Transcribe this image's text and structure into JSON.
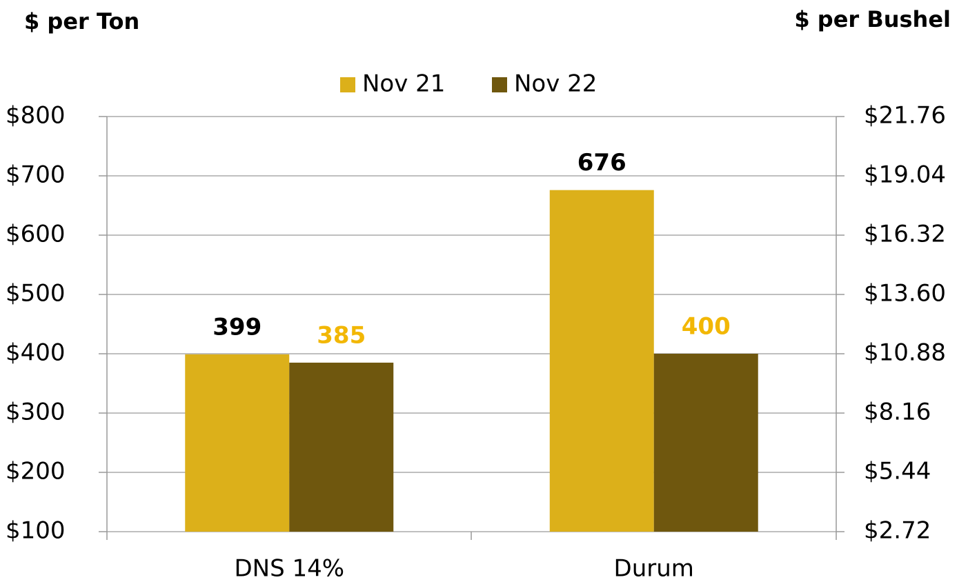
{
  "chart_data": {
    "type": "bar",
    "ylabel": "$ per Ton",
    "y2label": "$ per Bushel",
    "categories": [
      "DNS 14%",
      "Durum"
    ],
    "series": [
      {
        "name": "Nov 21",
        "color": "#dcb01a",
        "label_color": "#000000",
        "values": [
          399,
          676
        ]
      },
      {
        "name": "Nov 22",
        "color": "#6f570e",
        "label_color": "#f2b705",
        "values": [
          385,
          400
        ]
      }
    ],
    "ylim": [
      100,
      800
    ],
    "yticks": [
      {
        "value": 100,
        "label": "$100"
      },
      {
        "value": 200,
        "label": "$200"
      },
      {
        "value": 300,
        "label": "$300"
      },
      {
        "value": 400,
        "label": "$400"
      },
      {
        "value": 500,
        "label": "$500"
      },
      {
        "value": 600,
        "label": "$600"
      },
      {
        "value": 700,
        "label": "$700"
      },
      {
        "value": 800,
        "label": "$800"
      }
    ],
    "y2lim": [
      2.72,
      21.76
    ],
    "y2ticks": [
      {
        "value": 2.72,
        "label": "$2.72"
      },
      {
        "value": 5.44,
        "label": "$5.44"
      },
      {
        "value": 8.16,
        "label": "$8.16"
      },
      {
        "value": 10.88,
        "label": "$10.88"
      },
      {
        "value": 13.6,
        "label": "$13.60"
      },
      {
        "value": 16.32,
        "label": "$16.32"
      },
      {
        "value": 19.04,
        "label": "$19.04"
      },
      {
        "value": 21.76,
        "label": "$21.76"
      }
    ],
    "grid": true,
    "legend": "top"
  }
}
